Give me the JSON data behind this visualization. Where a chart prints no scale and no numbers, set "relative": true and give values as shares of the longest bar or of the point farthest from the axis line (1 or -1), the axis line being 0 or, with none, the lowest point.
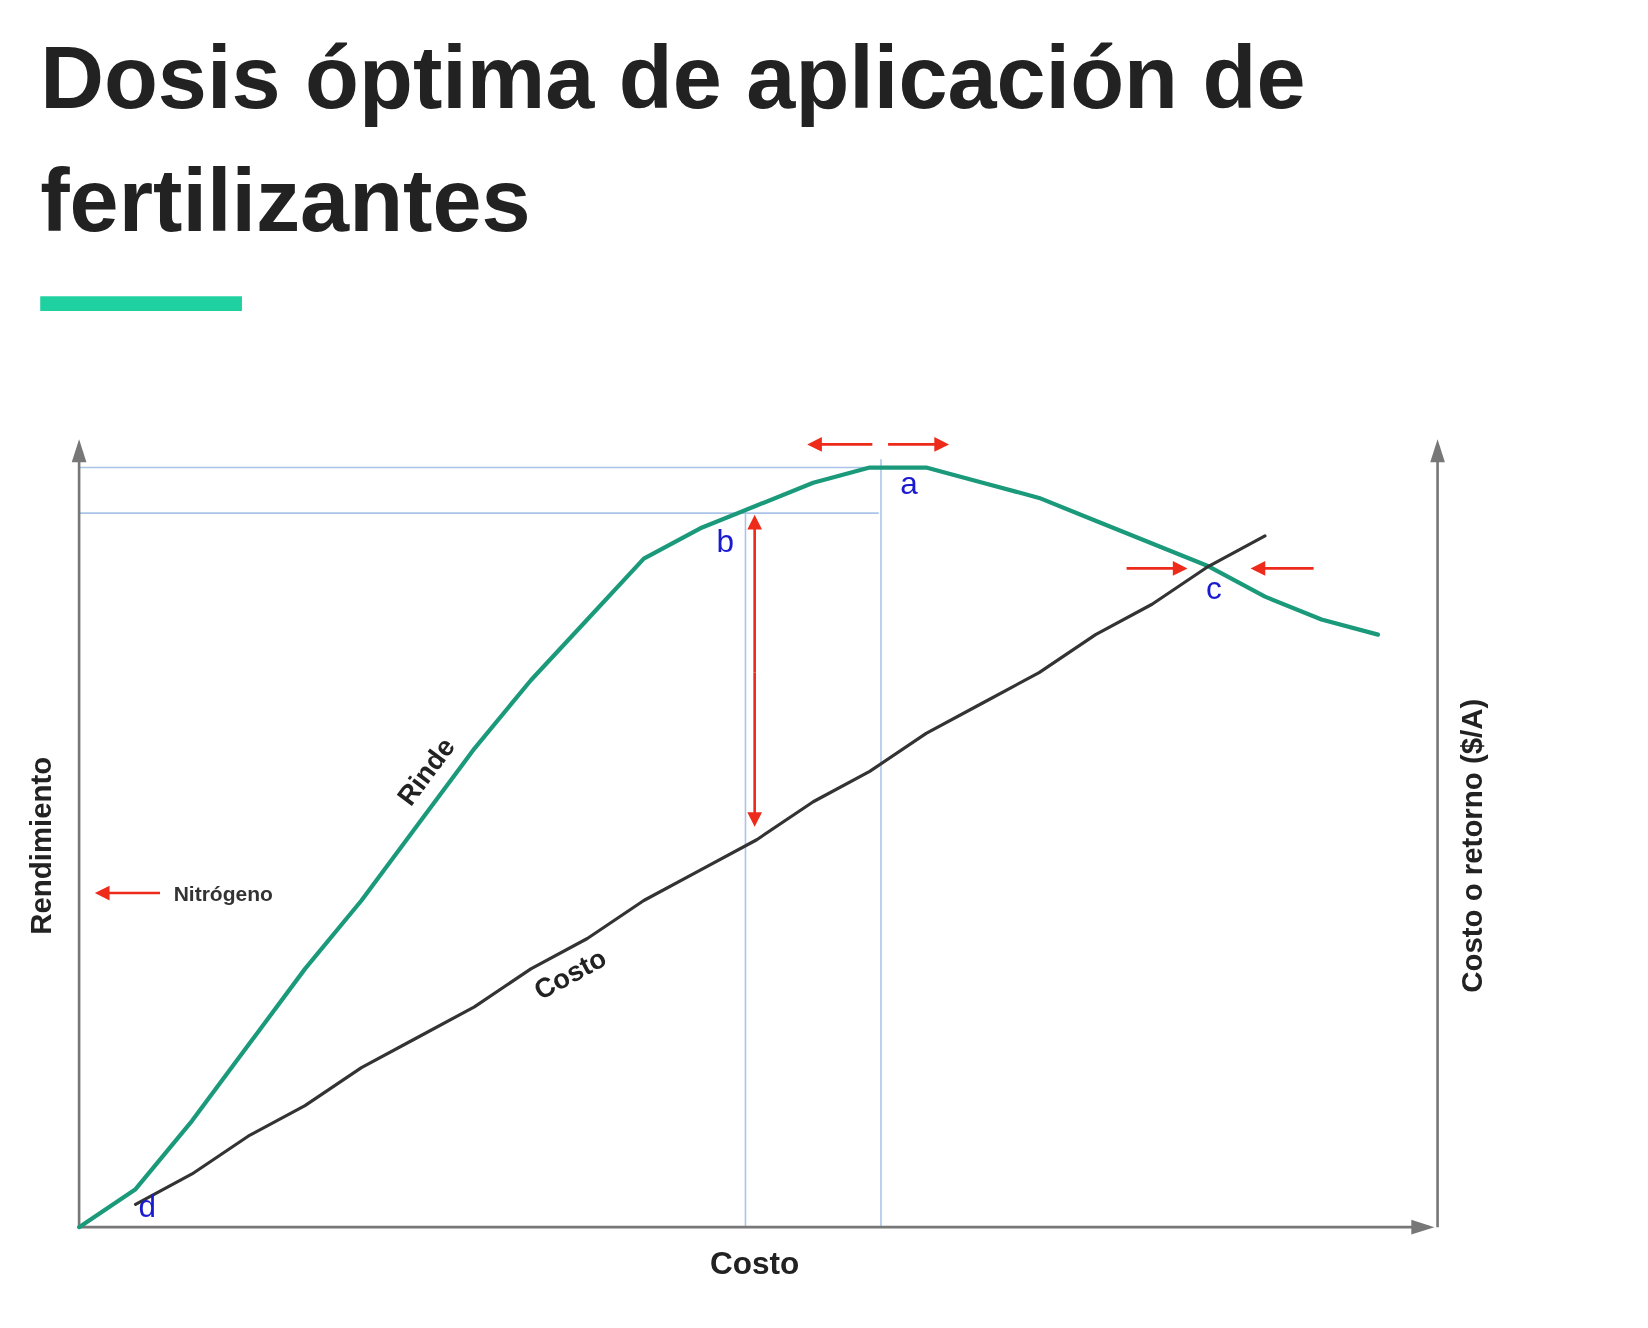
{
  "chart_data": {
    "type": "line",
    "title": "Dosis óptima de aplicación de fertilizantes",
    "xlabel": "Costo",
    "ylabel": "Rendimiento",
    "y2label": "Costo o retorno ($/A)",
    "relative": true,
    "categories": [
      null,
      null,
      null,
      null,
      null,
      null,
      null,
      null,
      null,
      null,
      null,
      null,
      null,
      null,
      null,
      null,
      null,
      null,
      null,
      null,
      null,
      null,
      null,
      null,
      null
    ],
    "series": [
      {
        "name": "Rinde",
        "color": "#1a9a7a",
        "values": [
          0,
          0.05,
          0.14,
          0.24,
          0.34,
          0.43,
          0.53,
          0.63,
          0.72,
          0.8,
          0.88,
          0.92,
          0.95,
          0.98,
          1,
          1,
          0.98,
          0.96,
          0.93,
          0.9,
          0.87,
          0.83,
          0.8,
          0.78,
          null
        ]
      },
      {
        "name": "Costo",
        "color": "#333333",
        "values": [
          null,
          0.03,
          0.07,
          0.12,
          0.16,
          0.21,
          0.25,
          0.29,
          0.34,
          0.38,
          0.43,
          0.47,
          0.51,
          0.56,
          0.6,
          0.65,
          0.69,
          0.73,
          0.78,
          0.82,
          0.87,
          0.91,
          null,
          null,
          null
        ]
      }
    ],
    "ref_lines": [
      {
        "axis": "y",
        "value": 1,
        "color": "#aac4e8"
      },
      {
        "axis": "y",
        "value": 0.94,
        "color": "#aac4e8"
      }
    ],
    "annotations": [
      "a",
      "b",
      "c",
      "d",
      "Nitrógeno"
    ],
    "line_style": "solid",
    "marker": "none"
  }
}
